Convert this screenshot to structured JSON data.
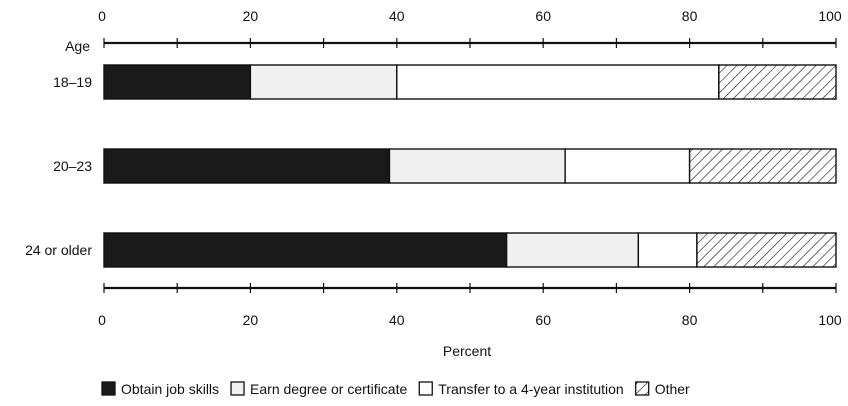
{
  "chart_data": {
    "type": "bar",
    "orientation": "horizontal",
    "stacked": true,
    "xlabel": "Percent",
    "ylabel": "Age",
    "xlim": [
      0,
      100
    ],
    "xticks": [
      0,
      20,
      40,
      60,
      80,
      100
    ],
    "categories": [
      "18–19",
      "20–23",
      "24 or older"
    ],
    "series": [
      {
        "name": "Obtain job skills",
        "values": [
          20,
          39,
          55
        ],
        "fill": "#1a1a1a"
      },
      {
        "name": "Earn degree or certificate",
        "values": [
          20,
          24,
          18
        ],
        "fill": "#f0f0f0"
      },
      {
        "name": "Transfer to a 4-year institution",
        "values": [
          44,
          17,
          8
        ],
        "fill": "#ffffff"
      },
      {
        "name": "Other",
        "values": [
          16,
          20,
          19
        ],
        "fill": "hatch"
      }
    ],
    "grid": false,
    "legend_position": "bottom"
  }
}
